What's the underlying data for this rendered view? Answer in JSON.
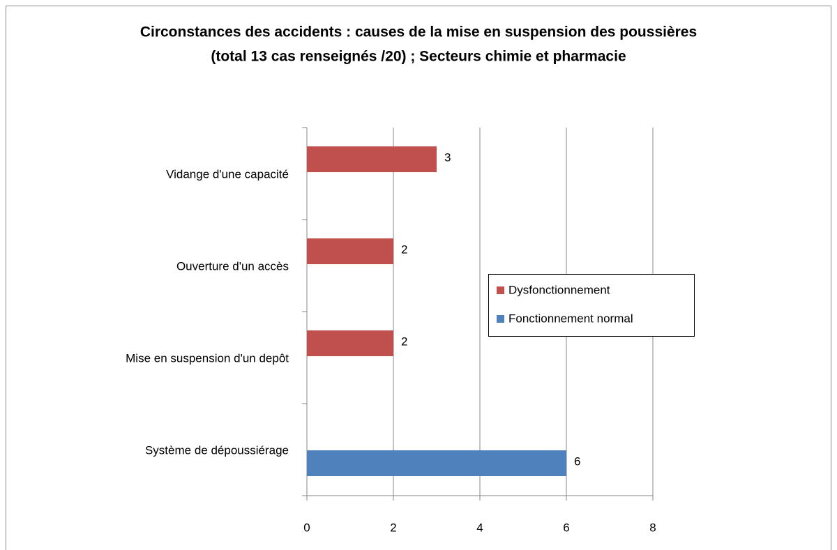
{
  "chart_data": {
    "type": "hbar",
    "title": [
      "Circonstances des accidents : causes de la mise en suspension des poussières",
      "(total 13 cas renseignés /20) ; Secteurs chimie et pharmacie"
    ],
    "categories": [
      "Vidange d'une capacité",
      "Ouverture d'un accès",
      "Mise en suspension d'un depôt",
      "Système de dépoussiérage"
    ],
    "series": [
      {
        "name": "Dysfonctionnement",
        "color": "#c0504d",
        "values": [
          3,
          2,
          2,
          null
        ]
      },
      {
        "name": "Fonctionnement normal",
        "color": "#4f81bd",
        "values": [
          null,
          null,
          null,
          6
        ]
      }
    ],
    "xlim": [
      0,
      8
    ],
    "xticks": [
      0,
      2,
      4,
      6,
      8
    ],
    "grid": true,
    "legend": "right"
  }
}
